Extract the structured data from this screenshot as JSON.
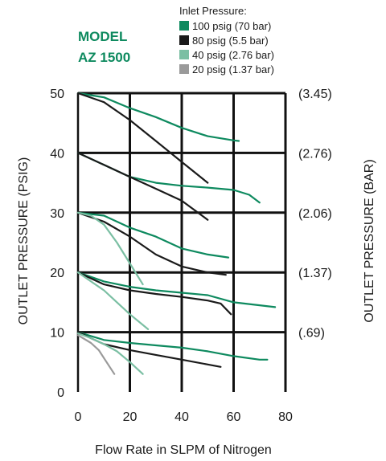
{
  "model": {
    "line1": "MODEL",
    "line2": "AZ 1500"
  },
  "legend": {
    "title": "Inlet Pressure:",
    "items": [
      {
        "label": "100 psig (70 bar)",
        "color": "#0e8a5f"
      },
      {
        "label": "80 psig (5.5 bar)",
        "color": "#1a1a1a"
      },
      {
        "label": "40 psig (2.76 bar)",
        "color": "#7bbfa3"
      },
      {
        "label": "20 psig (1.37 bar)",
        "color": "#9a9a9a"
      }
    ]
  },
  "chart_data": {
    "type": "line",
    "title": "",
    "xlabel": "Flow Rate in SLPM of Nitrogen",
    "ylabel": "OUTLET PRESSURE (PSIG)",
    "y2label": "OUTLET PRESSURE (BAR)",
    "xlim": [
      0,
      80
    ],
    "ylim": [
      0,
      50
    ],
    "x_ticks": [
      "0",
      "20",
      "40",
      "60",
      "80"
    ],
    "y_ticks": [
      "0",
      "10",
      "20",
      "30",
      "40",
      "50"
    ],
    "y2_ticks": [
      "(.69)",
      "(1.37)",
      "(2.06)",
      "(2.76)",
      "(3.45)"
    ],
    "grid": true,
    "series": [
      {
        "name": "100 psig (70 bar)",
        "color": "#0e8a5f",
        "set_point": 50,
        "points": [
          [
            0,
            50
          ],
          [
            10,
            49.3
          ],
          [
            20,
            47.5
          ],
          [
            30,
            46
          ],
          [
            40,
            44.2
          ],
          [
            50,
            42.8
          ],
          [
            60,
            42.1
          ],
          [
            62,
            42
          ]
        ]
      },
      {
        "name": "80 psig (5.5 bar)",
        "color": "#1a1a1a",
        "set_point": 50,
        "points": [
          [
            0,
            50
          ],
          [
            10,
            48.5
          ],
          [
            20,
            45.5
          ],
          [
            30,
            42
          ],
          [
            40,
            38.5
          ],
          [
            50,
            35
          ]
        ]
      },
      {
        "name": "100 psig (70 bar)",
        "color": "#0e8a5f",
        "set_point": 40,
        "points": [
          [
            0,
            40
          ],
          [
            10,
            38
          ],
          [
            20,
            36
          ],
          [
            30,
            35
          ],
          [
            40,
            34.5
          ],
          [
            50,
            34.2
          ],
          [
            60,
            33.8
          ],
          [
            66,
            33
          ],
          [
            70,
            31.7
          ]
        ]
      },
      {
        "name": "80 psig (5.5 bar)",
        "color": "#1a1a1a",
        "set_point": 40,
        "points": [
          [
            0,
            40
          ],
          [
            10,
            38
          ],
          [
            20,
            36
          ],
          [
            30,
            34
          ],
          [
            40,
            32
          ],
          [
            50,
            28.8
          ]
        ]
      },
      {
        "name": "100 psig (70 bar)",
        "color": "#0e8a5f",
        "set_point": 30,
        "points": [
          [
            0,
            30
          ],
          [
            10,
            29.5
          ],
          [
            20,
            27.5
          ],
          [
            30,
            26
          ],
          [
            40,
            24
          ],
          [
            50,
            23
          ],
          [
            58,
            22.5
          ]
        ]
      },
      {
        "name": "80 psig (5.5 bar)",
        "color": "#1a1a1a",
        "set_point": 30,
        "points": [
          [
            0,
            30
          ],
          [
            10,
            28.5
          ],
          [
            20,
            26
          ],
          [
            30,
            23
          ],
          [
            40,
            21
          ],
          [
            50,
            20
          ],
          [
            57,
            19.6
          ]
        ]
      },
      {
        "name": "40 psig (2.76 bar)",
        "color": "#7bbfa3",
        "set_point": 30,
        "points": [
          [
            0,
            30
          ],
          [
            5,
            29.5
          ],
          [
            10,
            28
          ],
          [
            15,
            25
          ],
          [
            20,
            21.5
          ],
          [
            25,
            18
          ]
        ]
      },
      {
        "name": "100 psig (70 bar)",
        "color": "#0e8a5f",
        "set_point": 20,
        "points": [
          [
            0,
            20
          ],
          [
            10,
            18.5
          ],
          [
            20,
            17.6
          ],
          [
            30,
            17
          ],
          [
            40,
            16.6
          ],
          [
            50,
            16.2
          ],
          [
            60,
            15
          ],
          [
            70,
            14.5
          ],
          [
            76,
            14.2
          ]
        ]
      },
      {
        "name": "80 psig (5.5 bar)",
        "color": "#1a1a1a",
        "set_point": 20,
        "points": [
          [
            0,
            20
          ],
          [
            10,
            18
          ],
          [
            20,
            17
          ],
          [
            30,
            16.4
          ],
          [
            40,
            15.9
          ],
          [
            50,
            15.3
          ],
          [
            55,
            14.8
          ],
          [
            59,
            13
          ]
        ]
      },
      {
        "name": "40 psig (2.76 bar)",
        "color": "#7bbfa3",
        "set_point": 20,
        "points": [
          [
            0,
            20
          ],
          [
            5,
            18.5
          ],
          [
            10,
            17
          ],
          [
            15,
            15
          ],
          [
            20,
            13
          ],
          [
            27,
            10.5
          ]
        ]
      },
      {
        "name": "100 psig (70 bar)",
        "color": "#0e8a5f",
        "set_point": 10,
        "points": [
          [
            0,
            10
          ],
          [
            10,
            8.7
          ],
          [
            20,
            8.2
          ],
          [
            30,
            7.8
          ],
          [
            40,
            7.4
          ],
          [
            50,
            6.8
          ],
          [
            60,
            6
          ],
          [
            70,
            5.4
          ],
          [
            73,
            5.4
          ]
        ]
      },
      {
        "name": "80 psig (5.5 bar)",
        "color": "#1a1a1a",
        "set_point": 10,
        "points": [
          [
            0,
            10
          ],
          [
            10,
            8
          ],
          [
            20,
            7
          ],
          [
            30,
            6.2
          ],
          [
            40,
            5.4
          ],
          [
            50,
            4.6
          ],
          [
            55,
            4.2
          ]
        ]
      },
      {
        "name": "40 psig (2.76 bar)",
        "color": "#7bbfa3",
        "set_point": 10,
        "points": [
          [
            0,
            9.8
          ],
          [
            5,
            9
          ],
          [
            10,
            8
          ],
          [
            15,
            6.8
          ],
          [
            20,
            5
          ],
          [
            25,
            3
          ]
        ]
      },
      {
        "name": "20 psig (1.37 bar)",
        "color": "#9a9a9a",
        "set_point": 10,
        "points": [
          [
            0,
            9.5
          ],
          [
            5,
            8.2
          ],
          [
            8,
            7
          ],
          [
            11,
            5
          ],
          [
            14,
            3
          ]
        ]
      }
    ]
  }
}
